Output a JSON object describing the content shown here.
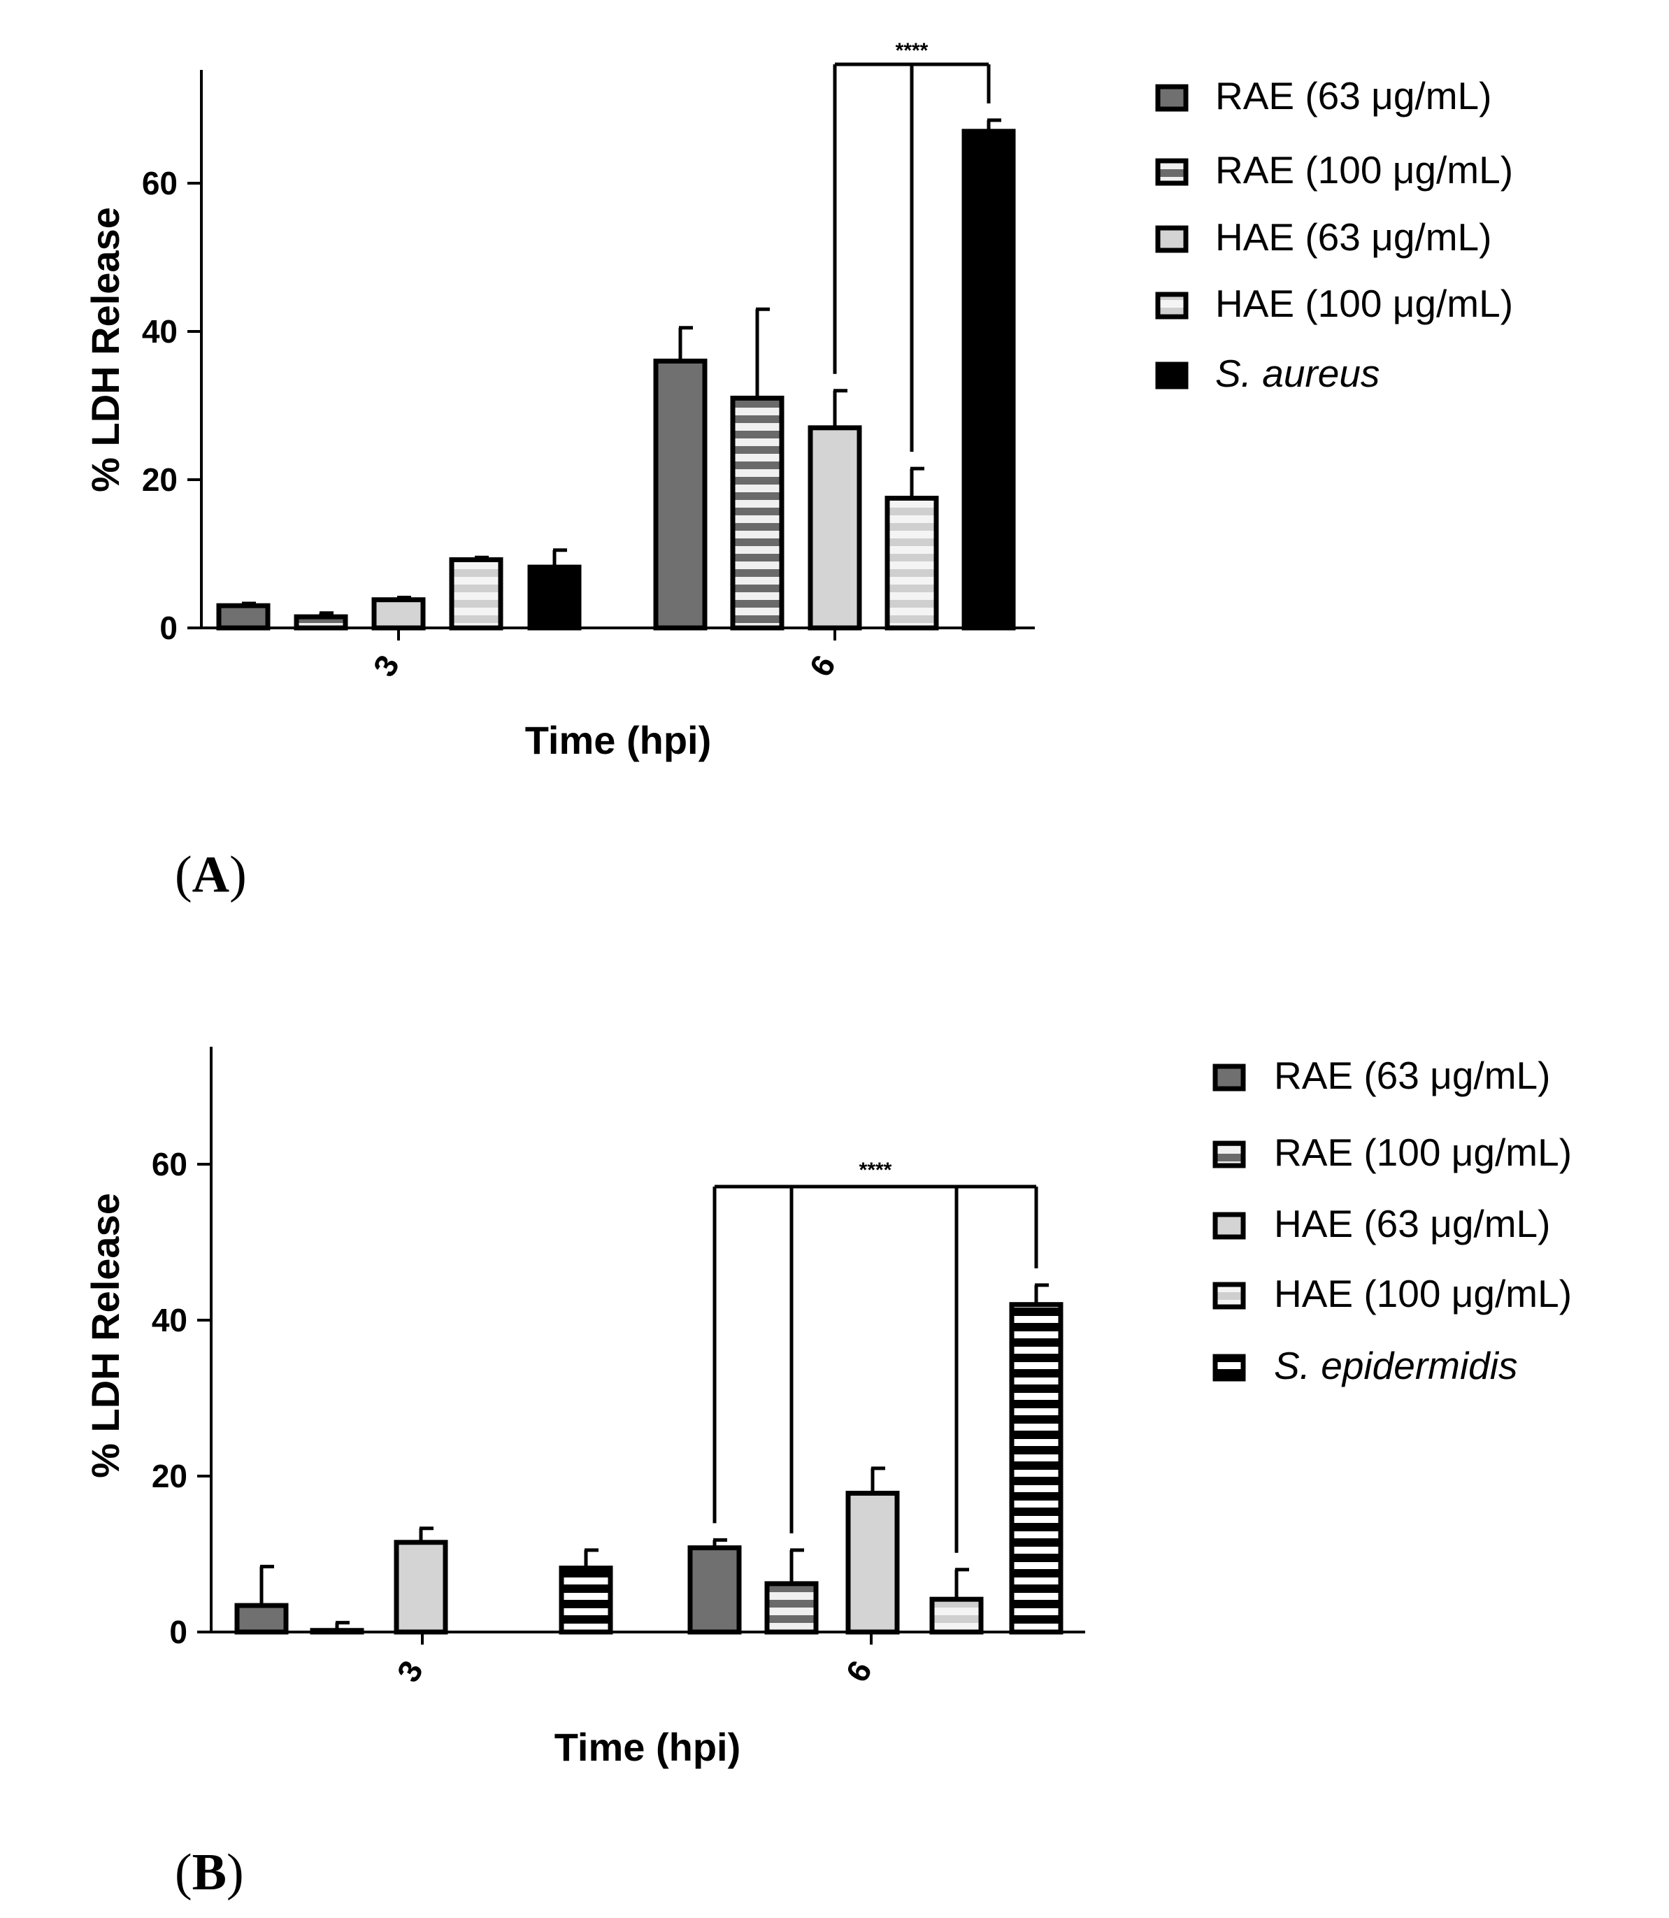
{
  "colors": {
    "rae63": "#707070",
    "rae100": "#8a8a8a",
    "hae63": "#d4d4d4",
    "hae100": "#e4e4e4",
    "bacteria_a": "#000000",
    "stripe_dark": "#000000",
    "stripe_light": "#ffffff"
  },
  "chart_data": [
    {
      "panel_label": "A",
      "type": "bar",
      "xlabel": "Time (hpi)",
      "ylabel": "% LDH Release",
      "ylim": [
        0,
        75
      ],
      "yticks": [
        "0",
        "20",
        "40",
        "60"
      ],
      "ytick_values": [
        0,
        20,
        40,
        60
      ],
      "categories": [
        "3",
        "6"
      ],
      "series": [
        {
          "name": "RAE (63 μg/mL)",
          "style": "rae63",
          "values": [
            3,
            36
          ],
          "errors": [
            0.3,
            4.5
          ]
        },
        {
          "name": "RAE (100 μg/mL)",
          "style": "rae100",
          "values": [
            1.5,
            31
          ],
          "errors": [
            0.5,
            12
          ]
        },
        {
          "name": "HAE (63 μg/mL)",
          "style": "hae63",
          "values": [
            3.8,
            27
          ],
          "errors": [
            0.3,
            5
          ]
        },
        {
          "name": "HAE (100 μg/mL)",
          "style": "hae100",
          "values": [
            9.2,
            17.5
          ],
          "errors": [
            0.3,
            4
          ]
        },
        {
          "name": "S. aureus",
          "italic": true,
          "style": "bacteria_a",
          "values": [
            8.2,
            67
          ],
          "errors": [
            2.3,
            1.5
          ]
        }
      ],
      "significance": {
        "label": "****",
        "category": "6",
        "from_series": [
          2,
          3
        ],
        "to_series": 4
      }
    },
    {
      "panel_label": "B",
      "type": "bar",
      "xlabel": "Time (hpi)",
      "ylabel": "% LDH Release",
      "ylim": [
        0,
        75
      ],
      "yticks": [
        "0",
        "20",
        "40",
        "60"
      ],
      "ytick_values": [
        0,
        20,
        40,
        60
      ],
      "categories": [
        "3",
        "6"
      ],
      "series": [
        {
          "name": "RAE (63 μg/mL)",
          "style": "rae63",
          "values": [
            3.4,
            10.8
          ],
          "errors": [
            5,
            1
          ]
        },
        {
          "name": "RAE (100 μg/mL)",
          "style": "rae100",
          "values": [
            0.2,
            6.2
          ],
          "errors": [
            1,
            4.3
          ]
        },
        {
          "name": "HAE (63 μg/mL)",
          "style": "hae63",
          "values": [
            11.5,
            17.8
          ],
          "errors": [
            1.8,
            3.2
          ]
        },
        {
          "name": "HAE (100 μg/mL)",
          "style": "hae100",
          "values": [
            0,
            4.2
          ],
          "errors": [
            0,
            3.8
          ]
        },
        {
          "name": "S. epidermidis",
          "italic": true,
          "style": "bacteria_b",
          "values": [
            8.2,
            42
          ],
          "errors": [
            2.3,
            2.5
          ]
        }
      ],
      "significance": {
        "label": "****",
        "category": "6",
        "from_series": [
          0,
          1,
          3
        ],
        "to_series": 4
      }
    }
  ]
}
